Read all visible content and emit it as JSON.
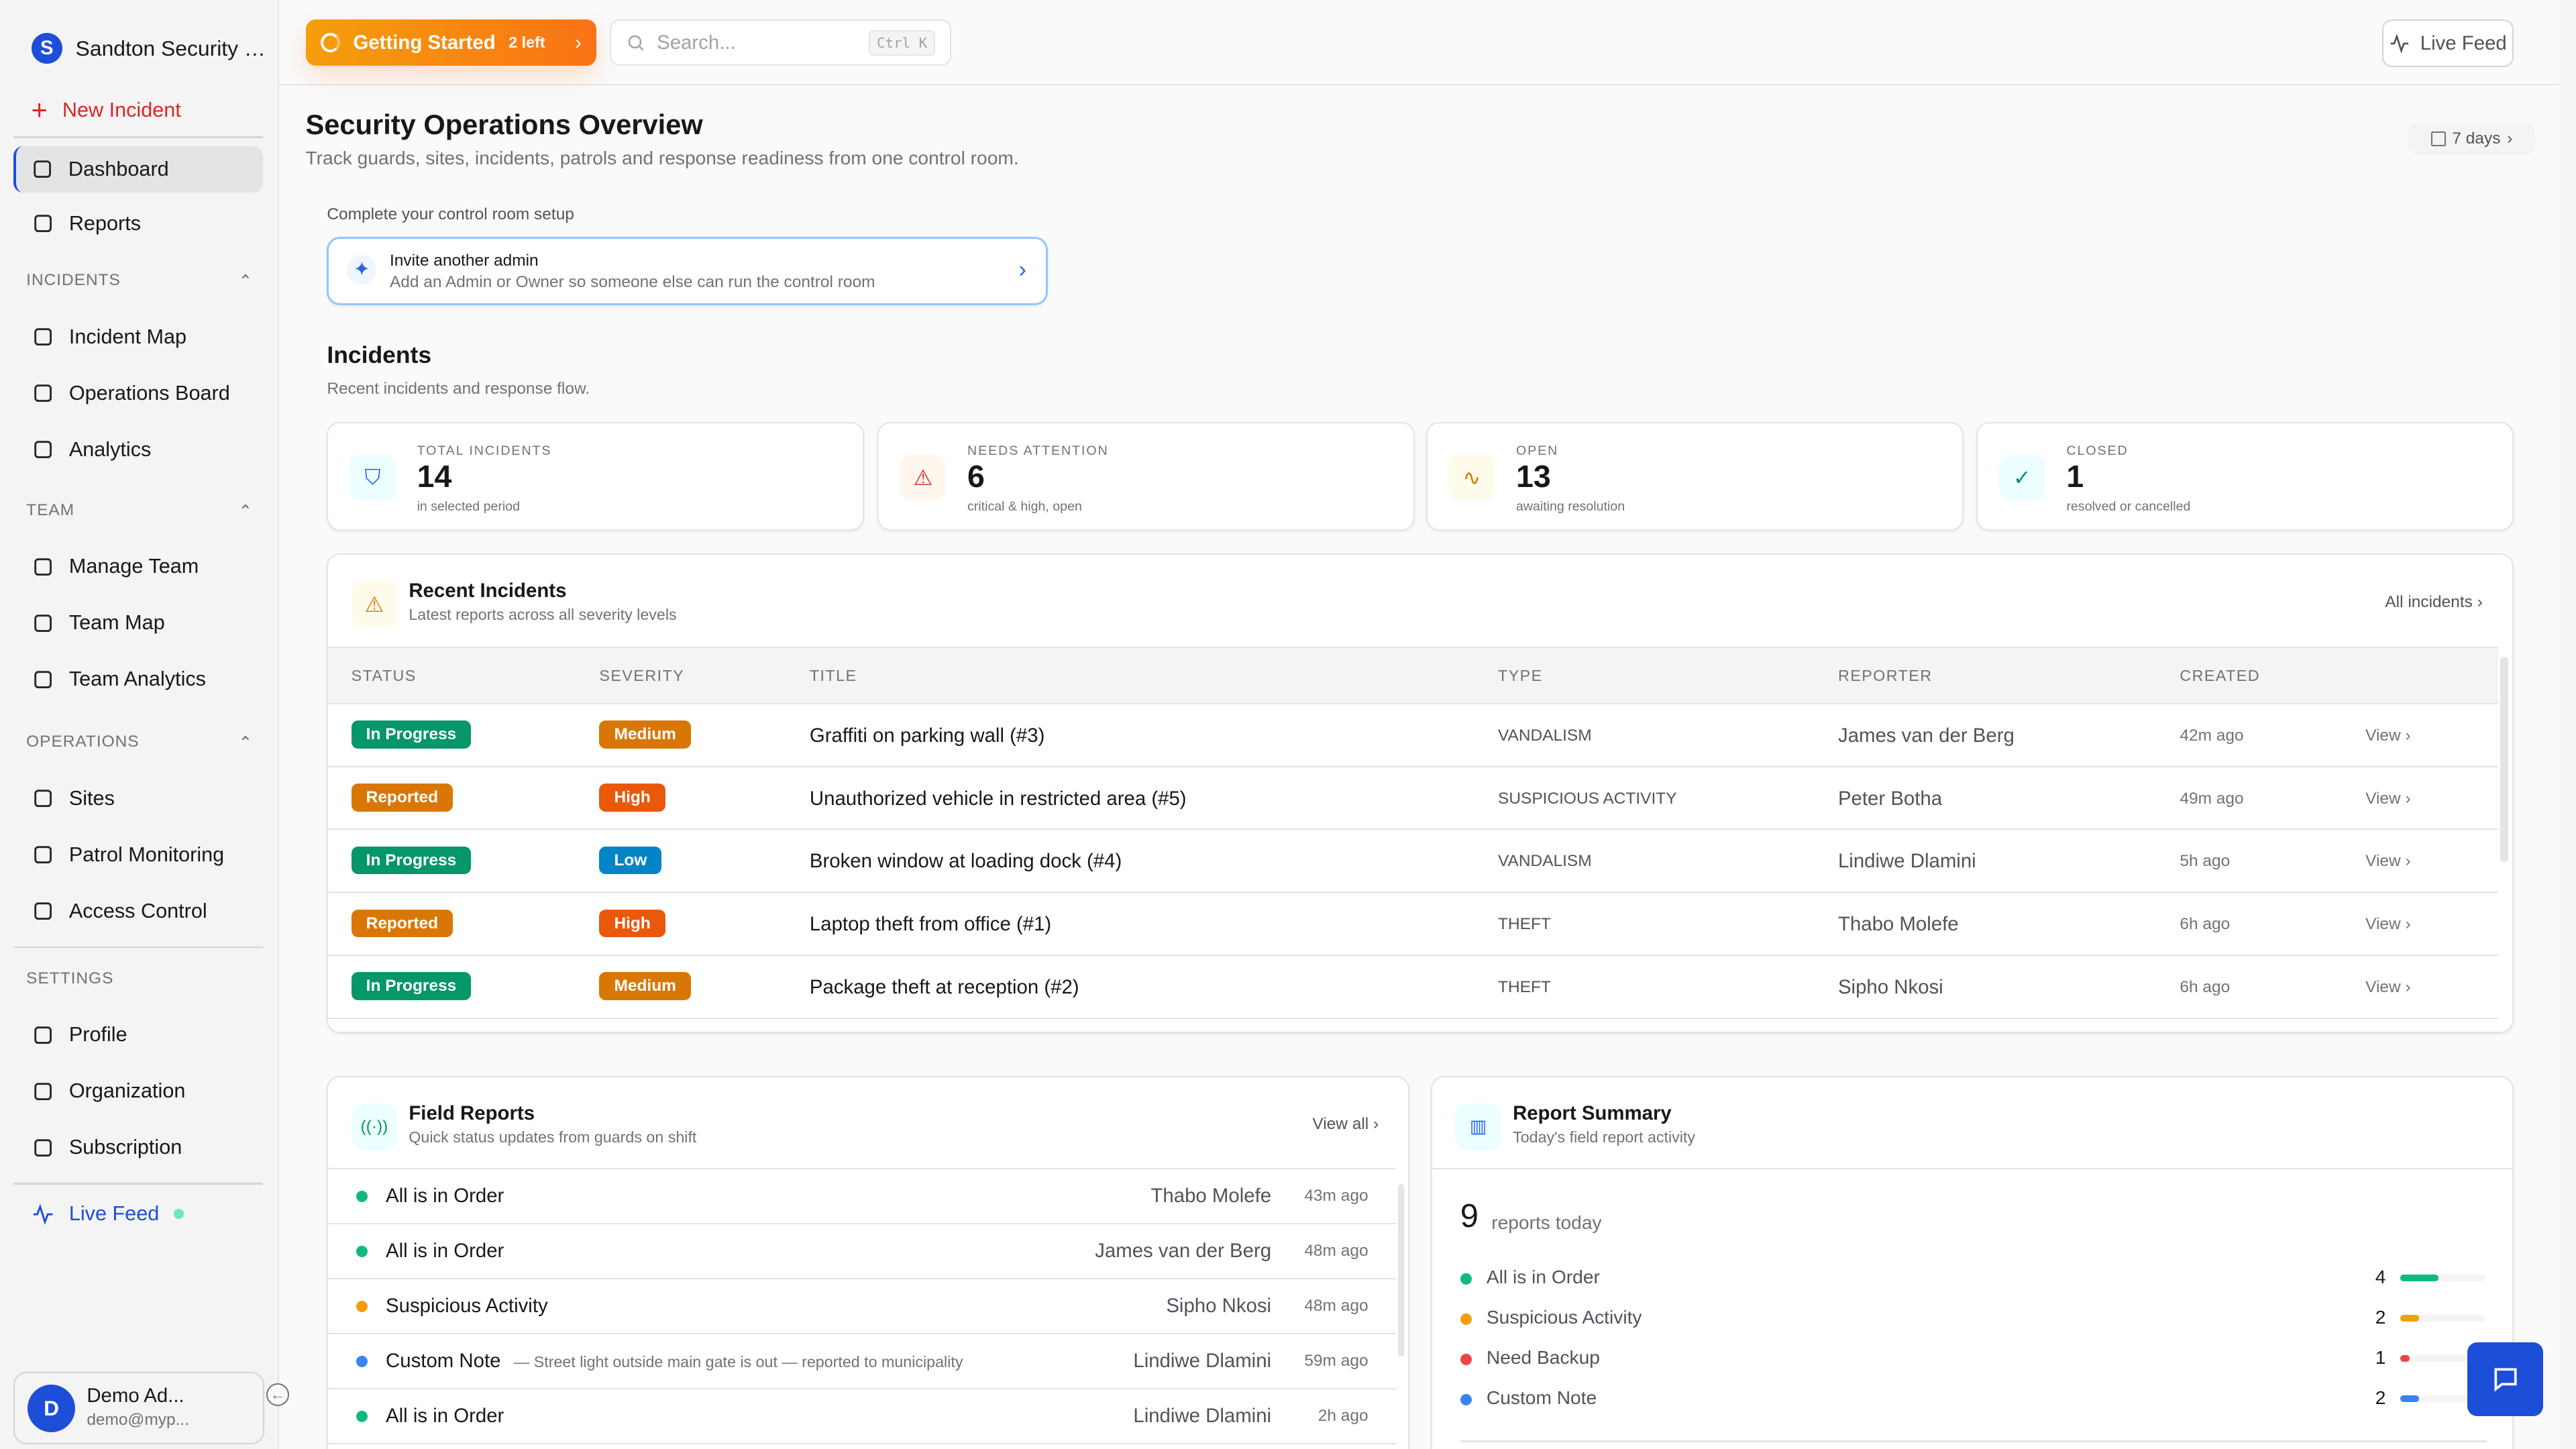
{
  "brand": {
    "initial": "S",
    "name": "Sandton Security Ser..."
  },
  "sidebar": {
    "new_incident": "New Incident",
    "top": [
      {
        "label": "Dashboard",
        "icon": "grid-icon",
        "active": true
      },
      {
        "label": "Reports",
        "icon": "file-chart-icon"
      }
    ],
    "sections": [
      {
        "title": "INCIDENTS",
        "items": [
          {
            "label": "Incident Map",
            "icon": "map-pin-icon"
          },
          {
            "label": "Operations Board",
            "icon": "clipboard-icon"
          },
          {
            "label": "Analytics",
            "icon": "bar-chart-icon"
          }
        ]
      },
      {
        "title": "TEAM",
        "items": [
          {
            "label": "Manage Team",
            "icon": "users-icon"
          },
          {
            "label": "Team Map",
            "icon": "shield-icon"
          },
          {
            "label": "Team Analytics",
            "icon": "bar-chart-icon"
          }
        ]
      },
      {
        "title": "OPERATIONS",
        "items": [
          {
            "label": "Sites",
            "icon": "building-icon"
          },
          {
            "label": "Patrol Monitoring",
            "icon": "eye-icon"
          },
          {
            "label": "Access Control",
            "icon": "id-card-icon"
          }
        ]
      },
      {
        "title": "SETTINGS",
        "items": [
          {
            "label": "Profile",
            "icon": "user-icon"
          },
          {
            "label": "Organization",
            "icon": "users-icon"
          },
          {
            "label": "Subscription",
            "icon": "credit-card-icon"
          }
        ]
      }
    ],
    "live_feed": "Live Feed",
    "user": {
      "initial": "D",
      "name": "Demo Ad...",
      "email": "demo@myp..."
    }
  },
  "topbar": {
    "getting_started": "Getting Started",
    "left": "2 left",
    "search_placeholder": "Search...",
    "shortcut": "Ctrl K",
    "live_feed": "Live Feed"
  },
  "page": {
    "title": "Security Operations Overview",
    "subtitle": "Track guards, sites, incidents, patrols and response readiness from one control room.",
    "range": "7 days"
  },
  "setup": {
    "label": "Complete your control room setup",
    "title": "Invite another admin",
    "desc": "Add an Admin or Owner so someone else can run the control room"
  },
  "incidents": {
    "title": "Incidents",
    "subtitle": "Recent incidents and response flow."
  },
  "stats": [
    {
      "label": "TOTAL INCIDENTS",
      "value": "14",
      "sub": "in selected period",
      "icon": "shield-icon",
      "color": "#2563eb",
      "bg": "#ecfeff"
    },
    {
      "label": "NEEDS ATTENTION",
      "value": "6",
      "sub": "critical & high, open",
      "icon": "alert-triangle-icon",
      "color": "#dc2626",
      "bg": "#fff7ed"
    },
    {
      "label": "OPEN",
      "value": "13",
      "sub": "awaiting resolution",
      "icon": "activity-icon",
      "color": "#d97706",
      "bg": "#fffbeb"
    },
    {
      "label": "CLOSED",
      "value": "1",
      "sub": "resolved or cancelled",
      "icon": "check-circle-icon",
      "color": "#059669",
      "bg": "#ecfeff"
    }
  ],
  "recent": {
    "title": "Recent Incidents",
    "subtitle": "Latest reports across all severity levels",
    "all_link": "All incidents",
    "columns": [
      "STATUS",
      "SEVERITY",
      "TITLE",
      "TYPE",
      "REPORTER",
      "CREATED"
    ],
    "rows": [
      {
        "status": "In Progress",
        "severity": "Medium",
        "title": "Graffiti on parking wall (#3)",
        "type": "VANDALISM",
        "reporter": "James van der Berg",
        "created": "42m ago",
        "action": "View"
      },
      {
        "status": "Reported",
        "severity": "High",
        "title": "Unauthorized vehicle in restricted area (#5)",
        "type": "SUSPICIOUS ACTIVITY",
        "reporter": "Peter Botha",
        "created": "49m ago",
        "action": "View"
      },
      {
        "status": "In Progress",
        "severity": "Low",
        "title": "Broken window at loading dock (#4)",
        "type": "VANDALISM",
        "reporter": "Lindiwe Dlamini",
        "created": "5h ago",
        "action": "View"
      },
      {
        "status": "Reported",
        "severity": "High",
        "title": "Laptop theft from office (#1)",
        "type": "THEFT",
        "reporter": "Thabo Molefe",
        "created": "6h ago",
        "action": "View"
      },
      {
        "status": "In Progress",
        "severity": "Medium",
        "title": "Package theft at reception (#2)",
        "type": "THEFT",
        "reporter": "Sipho Nkosi",
        "created": "6h ago",
        "action": "View"
      }
    ]
  },
  "colors": {
    "In Progress": "#059669",
    "Reported": "#d97706",
    "Medium": "#d97706",
    "High": "#ea580c",
    "Low": "#0284c7"
  },
  "field": {
    "title": "Field Reports",
    "subtitle": "Quick status updates from guards on shift",
    "view_all": "View all",
    "rows": [
      {
        "status": "All is in Order",
        "note": "",
        "who": "Thabo Molefe",
        "when": "43m ago",
        "color": "#10b981"
      },
      {
        "status": "All is in Order",
        "note": "",
        "who": "James van der Berg",
        "when": "48m ago",
        "color": "#10b981"
      },
      {
        "status": "Suspicious Activity",
        "note": "",
        "who": "Sipho Nkosi",
        "when": "48m ago",
        "color": "#f59e0b"
      },
      {
        "status": "Custom Note",
        "note": "— Street light outside main gate is out — reported to municipality",
        "who": "Lindiwe Dlamini",
        "when": "59m ago",
        "color": "#3b82f6"
      },
      {
        "status": "All is in Order",
        "note": "",
        "who": "Lindiwe Dlamini",
        "when": "2h ago",
        "color": "#10b981"
      }
    ]
  },
  "summary": {
    "title": "Report Summary",
    "subtitle": "Today's field report activity",
    "count": "9",
    "count_label": "reports today",
    "items": [
      {
        "label": "All is in Order",
        "value": 4,
        "color": "#10b981"
      },
      {
        "label": "Suspicious Activity",
        "value": 2,
        "color": "#f59e0b"
      },
      {
        "label": "Need Backup",
        "value": 1,
        "color": "#ef4444"
      },
      {
        "label": "Custom Note",
        "value": 2,
        "color": "#3b82f6"
      }
    ]
  }
}
